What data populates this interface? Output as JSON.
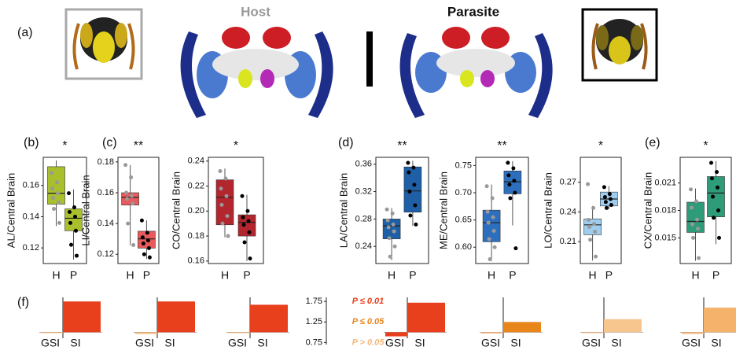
{
  "header": {
    "panel_a": "(a)",
    "host": "Host",
    "parasite": "Parasite",
    "panel_f": "(f)"
  },
  "chart_data": [
    {
      "type": "box",
      "panel_label": "(b)",
      "ylabel": "AL/Central Brain",
      "significance": "*",
      "color": "#a9bf2b",
      "categories": [
        "H",
        "P"
      ],
      "boxes": [
        {
          "min": 0.134,
          "q1": 0.148,
          "median": 0.155,
          "q3": 0.172,
          "max": 0.176
        },
        {
          "min": 0.1125,
          "q1": 0.131,
          "median": 0.139,
          "q3": 0.145,
          "max": 0.1575
        }
      ],
      "points": [
        [
          0.168,
          0.162,
          0.158,
          0.155,
          0.152,
          0.149,
          0.145,
          0.136
        ],
        [
          0.155,
          0.146,
          0.143,
          0.14,
          0.136,
          0.131,
          0.122,
          0.115
        ]
      ],
      "ylim": [
        0.11,
        0.178
      ],
      "yticks": [
        0.12,
        0.14,
        0.16
      ]
    },
    {
      "type": "box",
      "panel_label": "(c)",
      "ylabel": "LI/Central Brain",
      "significance": "**",
      "color": "#e85a5c",
      "categories": [
        "H",
        "P"
      ],
      "boxes": [
        {
          "min": 0.126,
          "q1": 0.152,
          "median": 0.157,
          "q3": 0.16,
          "max": 0.178
        },
        {
          "min": 0.117,
          "q1": 0.124,
          "median": 0.13,
          "q3": 0.135,
          "max": 0.142
        }
      ],
      "points": [
        [
          0.178,
          0.17,
          0.16,
          0.158,
          0.156,
          0.153,
          0.14,
          0.126
        ],
        [
          0.142,
          0.134,
          0.131,
          0.129,
          0.127,
          0.124,
          0.12,
          0.118
        ]
      ],
      "ylim": [
        0.114,
        0.183
      ],
      "yticks": [
        0.12,
        0.14,
        0.16,
        0.18
      ]
    },
    {
      "type": "box",
      "ylabel": "CO/Central Brain",
      "significance": "*",
      "color": "#b3262e",
      "categories": [
        "H",
        "P"
      ],
      "boxes": [
        {
          "min": 0.179,
          "q1": 0.189,
          "median": 0.211,
          "q3": 0.225,
          "max": 0.234
        },
        {
          "min": 0.16,
          "q1": 0.18,
          "median": 0.191,
          "q3": 0.197,
          "max": 0.213
        }
      ],
      "points": [
        [
          0.232,
          0.226,
          0.218,
          0.212,
          0.205,
          0.196,
          0.19,
          0.18
        ],
        [
          0.212,
          0.2,
          0.195,
          0.192,
          0.189,
          0.183,
          0.175,
          0.162
        ]
      ],
      "ylim": [
        0.158,
        0.243
      ],
      "yticks": [
        0.16,
        0.18,
        {
          "value": 0.2,
          "label": "0.20"
        },
        0.22,
        0.24
      ]
    },
    {
      "type": "box",
      "panel_label": "(d)",
      "ylabel": "LA/Central Brain",
      "significance": "**",
      "color": "#1f5fa6",
      "categories": [
        "H",
        "P"
      ],
      "boxes": [
        {
          "min": 0.22,
          "q1": 0.251,
          "median": 0.27,
          "q3": 0.28,
          "max": 0.296
        },
        {
          "min": 0.27,
          "q1": 0.29,
          "median": 0.321,
          "q3": 0.356,
          "max": 0.365
        }
      ],
      "points": [
        [
          0.294,
          0.288,
          0.278,
          0.272,
          0.268,
          0.262,
          0.252,
          0.24,
          0.225
        ],
        [
          0.362,
          0.355,
          0.348,
          0.33,
          0.32,
          0.3,
          0.285,
          0.272
        ]
      ],
      "ylim": [
        0.215,
        0.37
      ],
      "yticks": [
        0.24,
        0.28,
        0.32,
        0.36
      ]
    },
    {
      "type": "box",
      "ylabel": "ME/Central Brain",
      "significance": "**",
      "color": "#2d6fbf",
      "categories": [
        "H",
        "P"
      ],
      "boxes": [
        {
          "min": 0.575,
          "q1": 0.61,
          "median": 0.645,
          "q3": 0.668,
          "max": 0.715
        },
        {
          "min": 0.64,
          "q1": 0.698,
          "median": 0.72,
          "q3": 0.74,
          "max": 0.758
        }
      ],
      "points": [
        [
          0.712,
          0.69,
          0.665,
          0.655,
          0.645,
          0.63,
          0.615,
          0.6,
          0.578
        ],
        [
          0.755,
          0.745,
          0.732,
          0.722,
          0.715,
          0.7,
          0.69,
          0.598
        ]
      ],
      "ylim": [
        0.57,
        0.765
      ],
      "yticks": [
        {
          "value": 0.6,
          "label": "0.60"
        },
        0.65,
        {
          "value": 0.7,
          "label": "0.70"
        },
        0.75
      ]
    },
    {
      "type": "box",
      "ylabel": "LO/Central Brain",
      "significance": "*",
      "color": "#9fcdf0",
      "categories": [
        "H",
        "P"
      ],
      "boxes": [
        {
          "min": 0.191,
          "q1": 0.217,
          "median": 0.227,
          "q3": 0.233,
          "max": 0.246
        },
        {
          "min": 0.243,
          "q1": 0.246,
          "median": 0.253,
          "q3": 0.26,
          "max": 0.266
        }
      ],
      "points": [
        [
          0.268,
          0.244,
          0.232,
          0.228,
          0.225,
          0.22,
          0.212,
          0.195
        ],
        [
          0.265,
          0.258,
          0.255,
          0.253,
          0.25,
          0.247,
          0.244
        ]
      ],
      "ylim": [
        0.188,
        0.295
      ],
      "yticks": [
        0.21,
        0.24,
        0.27
      ]
    },
    {
      "type": "box",
      "panel_label": "(e)",
      "ylabel": "CX/Central Brain",
      "significance": "*",
      "color": "#2e9b79",
      "categories": [
        "H",
        "P"
      ],
      "boxes": [
        {
          "min": 0.0125,
          "q1": 0.0156,
          "median": 0.0168,
          "q3": 0.0189,
          "max": 0.0204
        },
        {
          "min": 0.0143,
          "q1": 0.0173,
          "median": 0.0199,
          "q3": 0.0217,
          "max": 0.0234
        }
      ],
      "points": [
        [
          0.0203,
          0.019,
          0.0183,
          0.017,
          0.0165,
          0.016,
          0.015,
          0.0128
        ],
        [
          0.0232,
          0.0222,
          0.0215,
          0.0205,
          0.0195,
          0.018,
          0.0172,
          0.015
        ]
      ],
      "ylim": [
        0.0122,
        0.0238
      ],
      "yticks": [
        0.015,
        0.018,
        0.021
      ]
    },
    {
      "type": "bar",
      "categories": [
        "GSI",
        "SI"
      ],
      "values": [
        0.98,
        1.75
      ],
      "colors": [
        "#f7b77a",
        "#e8401c"
      ],
      "bar_origin": 1,
      "ylim": [
        0.7,
        1.85
      ]
    },
    {
      "type": "bar",
      "categories": [
        "GSI",
        "SI"
      ],
      "values": [
        0.96,
        1.75
      ],
      "colors": [
        "#f7b77a",
        "#e8401c"
      ],
      "bar_origin": 1,
      "ylim": [
        0.7,
        1.85
      ]
    },
    {
      "type": "bar",
      "categories": [
        "GSI",
        "SI"
      ],
      "values": [
        0.98,
        1.67
      ],
      "colors": [
        "#f7b77a",
        "#e8401c"
      ],
      "bar_origin": 1,
      "ylim": [
        0.7,
        1.85
      ]
    },
    {
      "type": "key",
      "yticks": [
        0.75,
        1.25,
        1.75
      ],
      "ylim": [
        0.7,
        1.85
      ],
      "legend": [
        {
          "label": "P ≤ 0.01",
          "color": "#e8401c"
        },
        {
          "label": "P ≤ 0.05",
          "color": "#e8861c"
        },
        {
          "label": "P > 0.05",
          "color": "#f7b77a"
        }
      ]
    },
    {
      "type": "bar",
      "categories": [
        "GSI",
        "SI"
      ],
      "values": [
        0.9,
        1.72
      ],
      "colors": [
        "#e8401c",
        "#e8401c"
      ],
      "bar_origin": 1,
      "ylim": [
        0.7,
        1.85
      ]
    },
    {
      "type": "bar",
      "categories": [
        "GSI",
        "SI"
      ],
      "values": [
        0.97,
        1.25
      ],
      "colors": [
        "#f7b77a",
        "#e8861c"
      ],
      "bar_origin": 1,
      "ylim": [
        0.7,
        1.85
      ]
    },
    {
      "type": "bar",
      "categories": [
        "GSI",
        "SI"
      ],
      "values": [
        0.98,
        1.32
      ],
      "colors": [
        "#f7b77a",
        "#f7c68f"
      ],
      "bar_origin": 1,
      "ylim": [
        0.7,
        1.85
      ]
    },
    {
      "type": "bar",
      "categories": [
        "GSI",
        "SI"
      ],
      "values": [
        0.96,
        1.6
      ],
      "colors": [
        "#f7b77a",
        "#f5b26b"
      ],
      "bar_origin": 1,
      "ylim": [
        0.7,
        1.85
      ]
    }
  ]
}
